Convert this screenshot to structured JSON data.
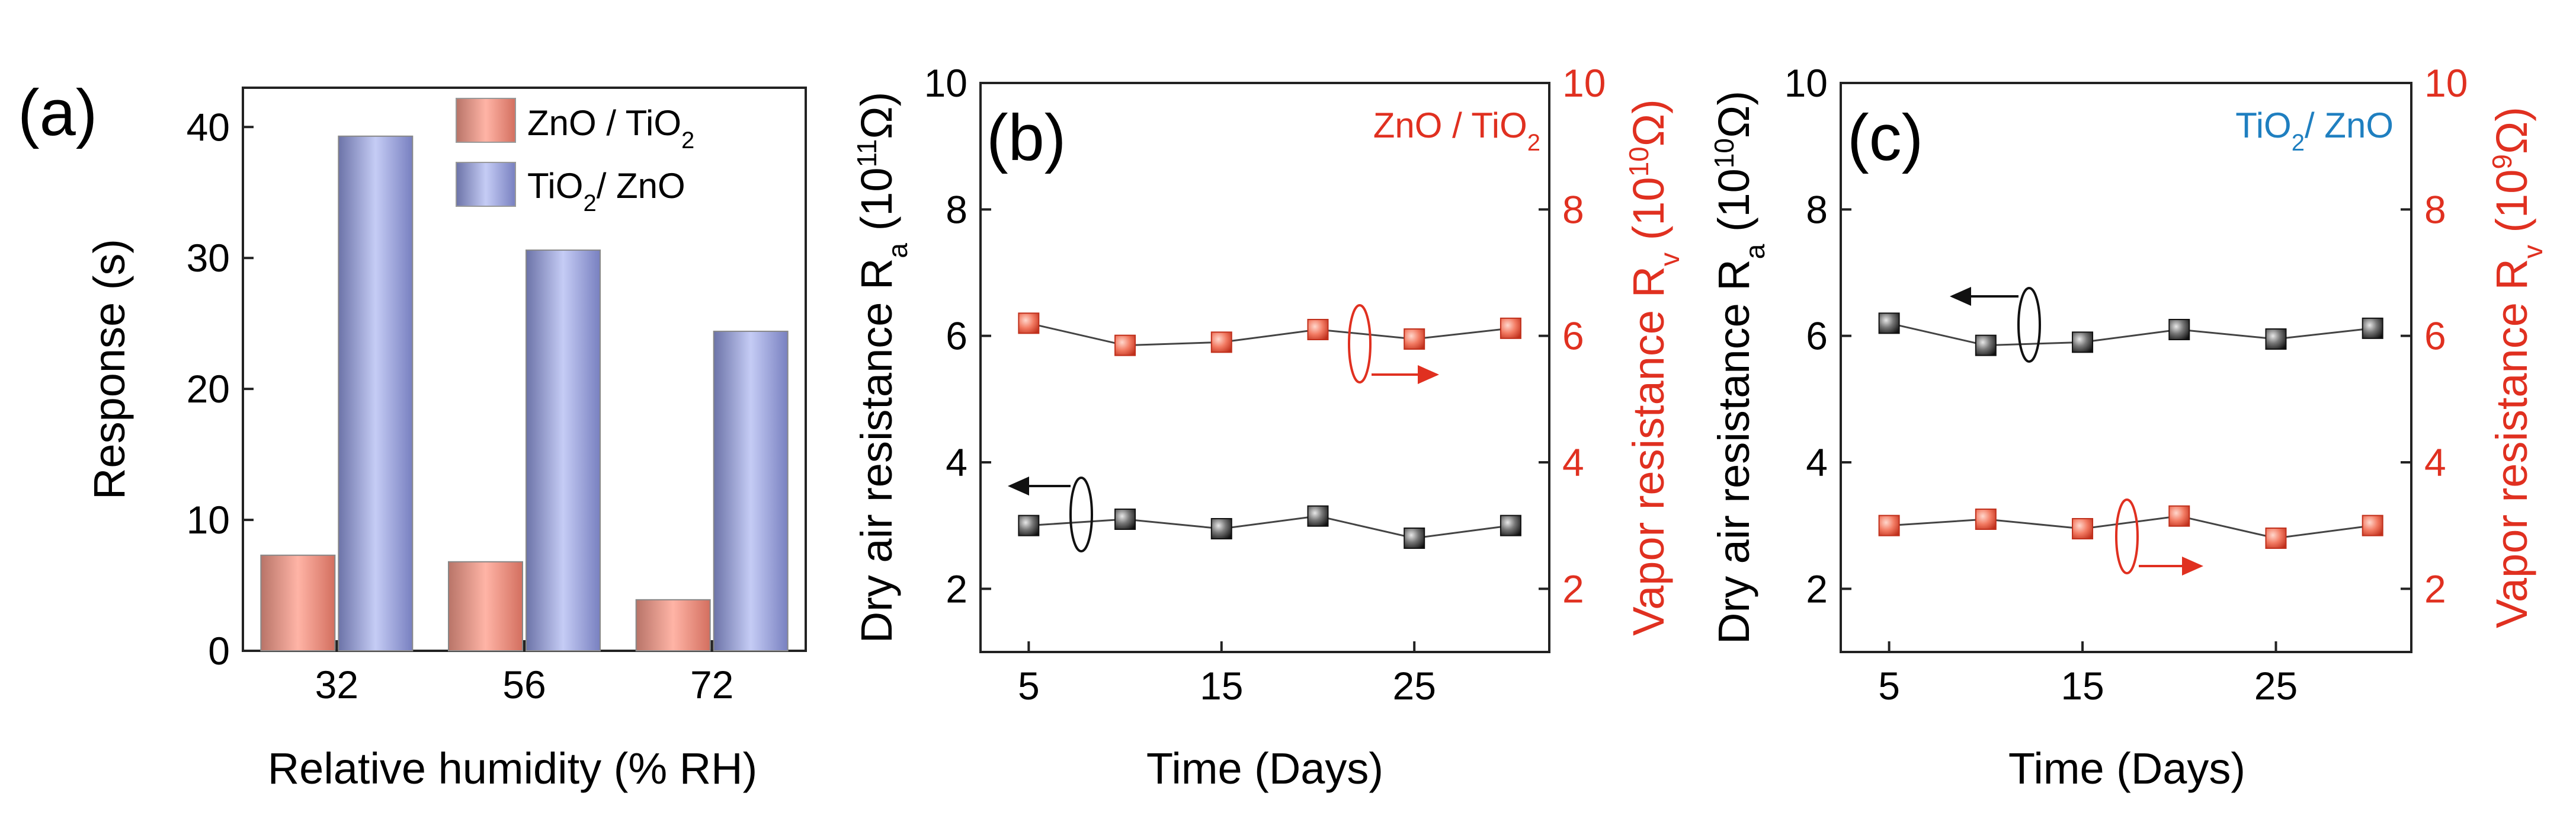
{
  "colors": {
    "zno_tio2_bar": "#f08878",
    "tio2_zno_bar": "#8d96d6",
    "air_marker": "#333333",
    "vapor_marker": "#e8523c",
    "red_text": "#e03020",
    "blue_text": "#1f7fc0",
    "axis": "#222222"
  },
  "chart_data": [
    {
      "panel": "(a)",
      "type": "bar",
      "title": "",
      "xlabel": "Relative humidity (% RH)",
      "ylabel": "Response (s)",
      "ylim": [
        0,
        43
      ],
      "yticks": [
        "0",
        "10",
        "20",
        "30",
        "40"
      ],
      "ytick_values": [
        0,
        10,
        20,
        30,
        40
      ],
      "categories": [
        "32",
        "56",
        "72"
      ],
      "series": [
        {
          "name": "ZnO / TiO",
          "sub": "2",
          "label_plain": "ZnO / TiO2",
          "values": [
            7.3,
            6.8,
            3.9
          ],
          "color_key": "zno_tio2_bar"
        },
        {
          "name": "TiO",
          "sub": "2",
          "name_after": "/ ZnO",
          "label_plain": "TiO2/ ZnO",
          "values": [
            39.3,
            30.6,
            24.4
          ],
          "color_key": "tio2_zno_bar"
        }
      ],
      "legend_position": "top-right",
      "grid": false
    },
    {
      "panel": "(b)",
      "type": "scatter",
      "sample_label_main": "ZnO / TiO",
      "sample_label_sub": "2",
      "sample_label_color_key": "red_text",
      "xlabel": "Time (Days)",
      "xlim": [
        2.5,
        32
      ],
      "xticks": [
        "5",
        "15",
        "25"
      ],
      "xtick_values": [
        5,
        15,
        25
      ],
      "ylabel_left": {
        "main": "Dry air resistance R",
        "sub": "a",
        "unit_prefix": " (10",
        "sup": "11",
        "unit_suffix": "Ω)"
      },
      "ylabel_right": {
        "main": "Vapor resistance R",
        "sub": "v",
        "unit_prefix": " (10",
        "sup": "10",
        "unit_suffix": "Ω)"
      },
      "ylim_left": [
        1,
        10
      ],
      "ylim_right": [
        1,
        10
      ],
      "yticks_left": [
        "2",
        "4",
        "6",
        "8",
        "10"
      ],
      "yticks_right": [
        "2",
        "4",
        "6",
        "8",
        "10"
      ],
      "ytick_values": [
        2,
        4,
        6,
        8,
        10
      ],
      "series": [
        {
          "name": "Dry air resistance",
          "axis": "left",
          "x": [
            5,
            10,
            15,
            20,
            25,
            30
          ],
          "y": [
            3.0,
            3.1,
            2.95,
            3.15,
            2.8,
            3.0
          ],
          "color_key": "air_marker"
        },
        {
          "name": "Vapor resistance",
          "axis": "right",
          "x": [
            5,
            10,
            15,
            20,
            25,
            30
          ],
          "y": [
            6.2,
            5.85,
            5.9,
            6.1,
            5.95,
            6.12
          ],
          "color_key": "vapor_marker"
        }
      ]
    },
    {
      "panel": "(c)",
      "type": "scatter",
      "sample_label_main": "TiO",
      "sample_label_sub": "2",
      "sample_label_after": "/ ZnO",
      "sample_label_color_key": "blue_text",
      "xlabel": "Time (Days)",
      "xlim": [
        2.5,
        32
      ],
      "xticks": [
        "5",
        "15",
        "25"
      ],
      "xtick_values": [
        5,
        15,
        25
      ],
      "ylabel_left": {
        "main": "Dry air resistance R",
        "sub": "a",
        "unit_prefix": " (10",
        "sup": "10",
        "unit_suffix": "Ω)"
      },
      "ylabel_right": {
        "main": "Vapor resistance R",
        "sub": "v",
        "unit_prefix": " (10",
        "sup": "9",
        "unit_suffix": "Ω)"
      },
      "ylim_left": [
        1,
        10
      ],
      "ylim_right": [
        1,
        10
      ],
      "yticks_left": [
        "2",
        "4",
        "6",
        "8",
        "10"
      ],
      "yticks_right": [
        "2",
        "4",
        "6",
        "8",
        "10"
      ],
      "ytick_values": [
        2,
        4,
        6,
        8,
        10
      ],
      "series": [
        {
          "name": "Dry air resistance",
          "axis": "left",
          "x": [
            5,
            10,
            15,
            20,
            25,
            30
          ],
          "y": [
            6.2,
            5.85,
            5.9,
            6.1,
            5.95,
            6.12
          ],
          "color_key": "air_marker"
        },
        {
          "name": "Vapor resistance",
          "axis": "right",
          "x": [
            5,
            10,
            15,
            20,
            25,
            30
          ],
          "y": [
            3.0,
            3.1,
            2.95,
            3.15,
            2.8,
            3.0
          ],
          "color_key": "vapor_marker"
        }
      ]
    }
  ]
}
